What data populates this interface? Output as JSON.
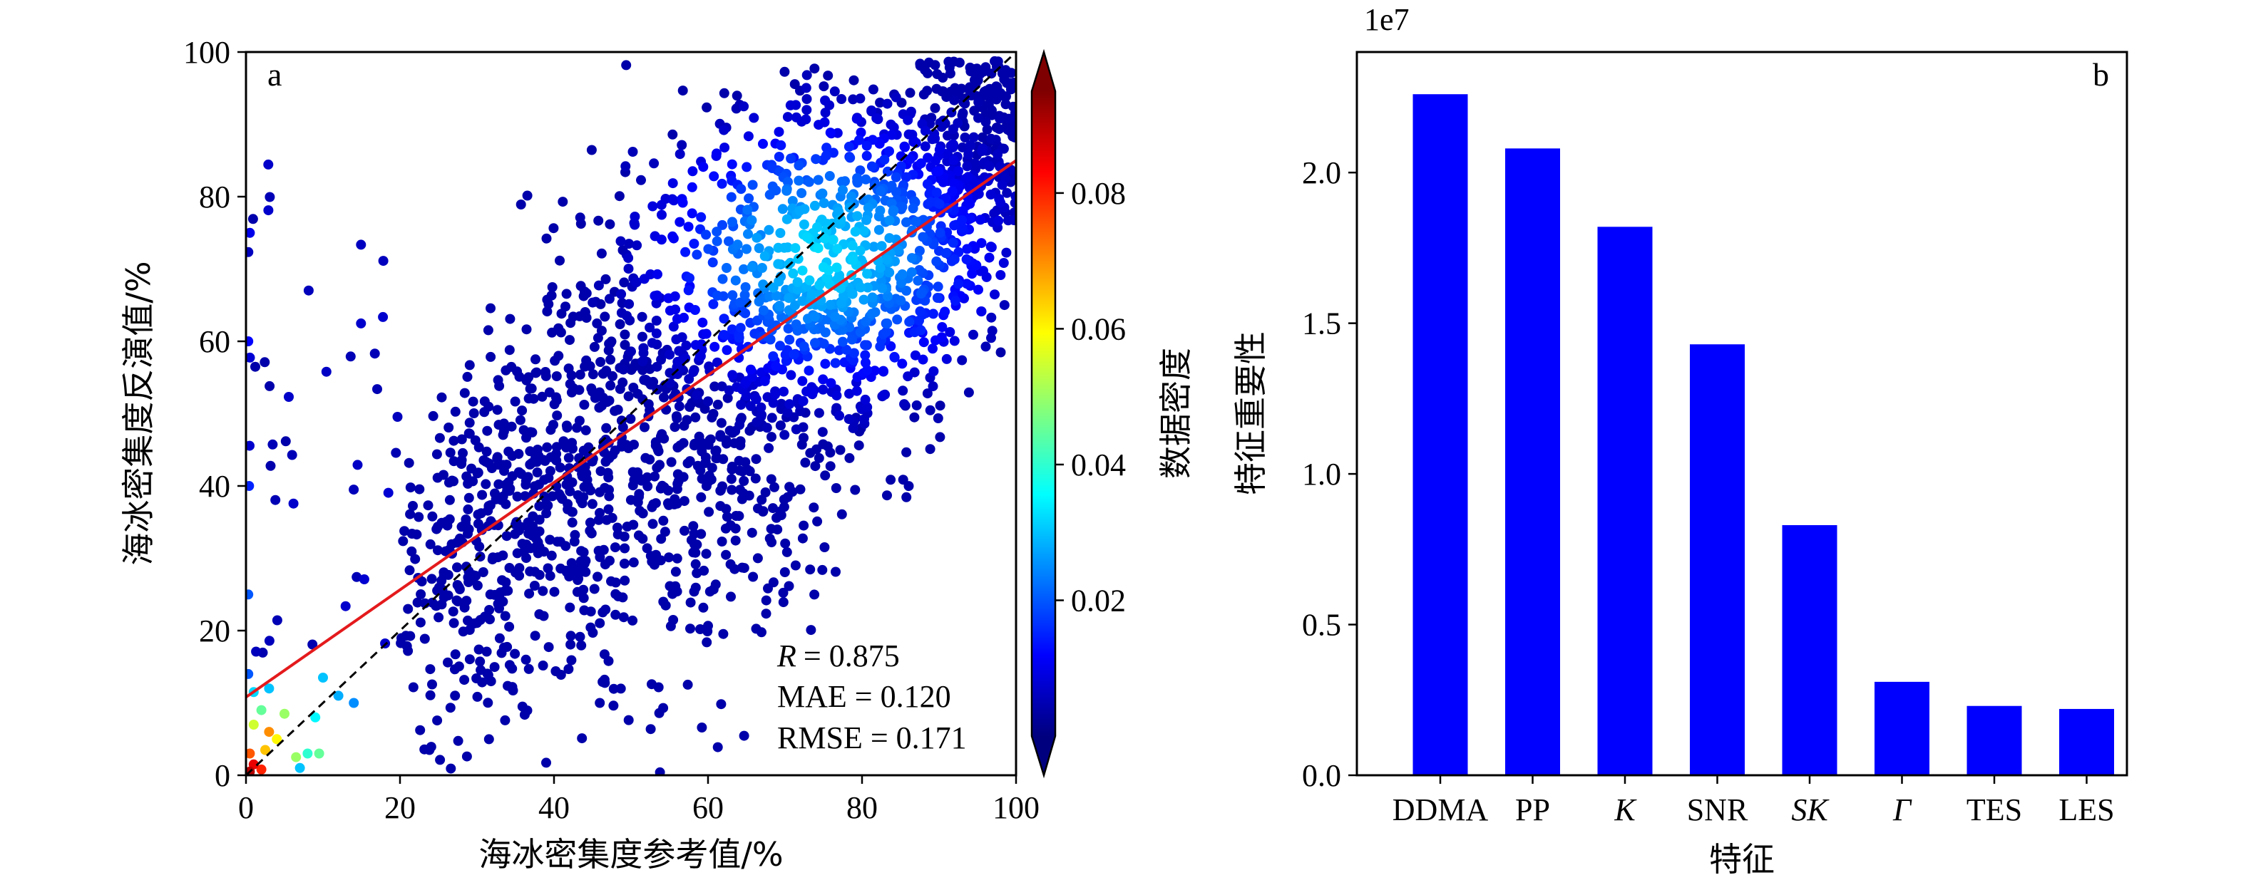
{
  "chart_data": [
    {
      "type": "scatter",
      "panel_label": "a",
      "xlabel": "海冰密集度参考值/%",
      "ylabel": "海冰密集度反演值/%",
      "xlim": [
        0,
        100
      ],
      "ylim": [
        0,
        100
      ],
      "xticks": [
        "0",
        "20",
        "40",
        "60",
        "80",
        "100"
      ],
      "yticks": [
        "0",
        "20",
        "40",
        "60",
        "80",
        "100"
      ],
      "colorbar": {
        "label": "数据密度",
        "colormap": "jet",
        "range": [
          0,
          0.095
        ],
        "ticks": [
          "0.02",
          "0.04",
          "0.06",
          "0.08"
        ],
        "tick_values": [
          0.02,
          0.04,
          0.06,
          0.08
        ]
      },
      "reference_line": {
        "style": "dashed",
        "color": "#000000",
        "slope": 1,
        "intercept": 0
      },
      "fit_line": {
        "color": "#e41a1c",
        "points": [
          [
            0,
            10.8
          ],
          [
            100,
            85.0
          ]
        ]
      },
      "stats": {
        "r_label": "R",
        "r_value": "= 0.875",
        "mae": "MAE = 0.120",
        "rmse": "RMSE = 0.171"
      },
      "highlight_points": [
        [
          0.5,
          0.5,
          0.09
        ],
        [
          1,
          1.5,
          0.085
        ],
        [
          2,
          0.8,
          0.08
        ],
        [
          0.5,
          3,
          0.075
        ],
        [
          2.5,
          3.5,
          0.065
        ],
        [
          3,
          6,
          0.07
        ],
        [
          1,
          7,
          0.055
        ],
        [
          4,
          5,
          0.06
        ],
        [
          5,
          8.5,
          0.05
        ],
        [
          2,
          9,
          0.045
        ],
        [
          6.5,
          2.5,
          0.05
        ],
        [
          8,
          3,
          0.04
        ],
        [
          9,
          8,
          0.035
        ],
        [
          10,
          13.5,
          0.03
        ],
        [
          12,
          11,
          0.028
        ],
        [
          14,
          10,
          0.025
        ],
        [
          7,
          1,
          0.03
        ],
        [
          9.5,
          3,
          0.045
        ],
        [
          1,
          11.5,
          0.032
        ],
        [
          3,
          12,
          0.03
        ],
        [
          0.3,
          14,
          0.02
        ],
        [
          0.4,
          40,
          0.015
        ],
        [
          0.3,
          60,
          0.012
        ],
        [
          0.5,
          75,
          0.01
        ],
        [
          0.3,
          25,
          0.02
        ]
      ],
      "scatter_model": {
        "n": 2300,
        "slope": 0.742,
        "intercept": 10.8,
        "x_range": [
          20,
          100
        ],
        "dense_center": [
          75,
          72
        ],
        "seed": 7
      }
    },
    {
      "type": "bar",
      "panel_label": "b",
      "xlabel": "特征",
      "ylabel": "特征重要性",
      "offset_text": "1e7",
      "categories": [
        "DDMA",
        "PP",
        "K",
        "SNR",
        "SK",
        "Γ",
        "TES",
        "LES"
      ],
      "italic_categories": [
        "K",
        "SK",
        "Γ"
      ],
      "values": [
        2.26,
        2.08,
        1.82,
        1.43,
        0.83,
        0.31,
        0.23,
        0.22
      ],
      "ylim": [
        0,
        2.4
      ],
      "yticks": [
        "0.0",
        "0.5",
        "1.0",
        "1.5",
        "2.0"
      ],
      "tick_values": [
        0.0,
        0.5,
        1.0,
        1.5,
        2.0
      ],
      "bar_color": "#0000ff"
    }
  ]
}
